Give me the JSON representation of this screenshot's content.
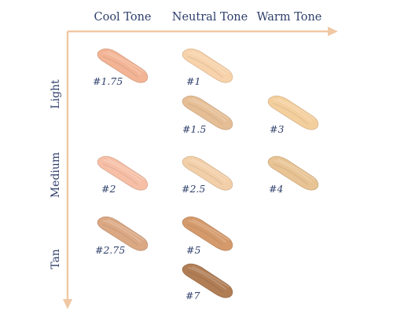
{
  "columns": [
    {
      "label": "Cool Tone"
    },
    {
      "label": "Neutral Tone"
    },
    {
      "label": "Warm Tone"
    }
  ],
  "rows": [
    {
      "label": "Light"
    },
    {
      "label": "Medium"
    },
    {
      "label": "Tan"
    }
  ],
  "axis_color": "#f0c8a4",
  "swatches": [
    {
      "label": "#1.75",
      "color": "#f2b494"
    },
    {
      "label": "#1",
      "color": "#f7d2aa"
    },
    {
      "label": "#1.5",
      "color": "#e6be95"
    },
    {
      "label": "#3",
      "color": "#f4cf9e"
    },
    {
      "label": "#2",
      "color": "#f6bfa6"
    },
    {
      "label": "#2.5",
      "color": "#f2cfa8"
    },
    {
      "label": "#4",
      "color": "#e8c394"
    },
    {
      "label": "#2.75",
      "color": "#dba884"
    },
    {
      "label": "#5",
      "color": "#d49a6c"
    },
    {
      "label": "#7",
      "color": "#b07d55"
    }
  ]
}
